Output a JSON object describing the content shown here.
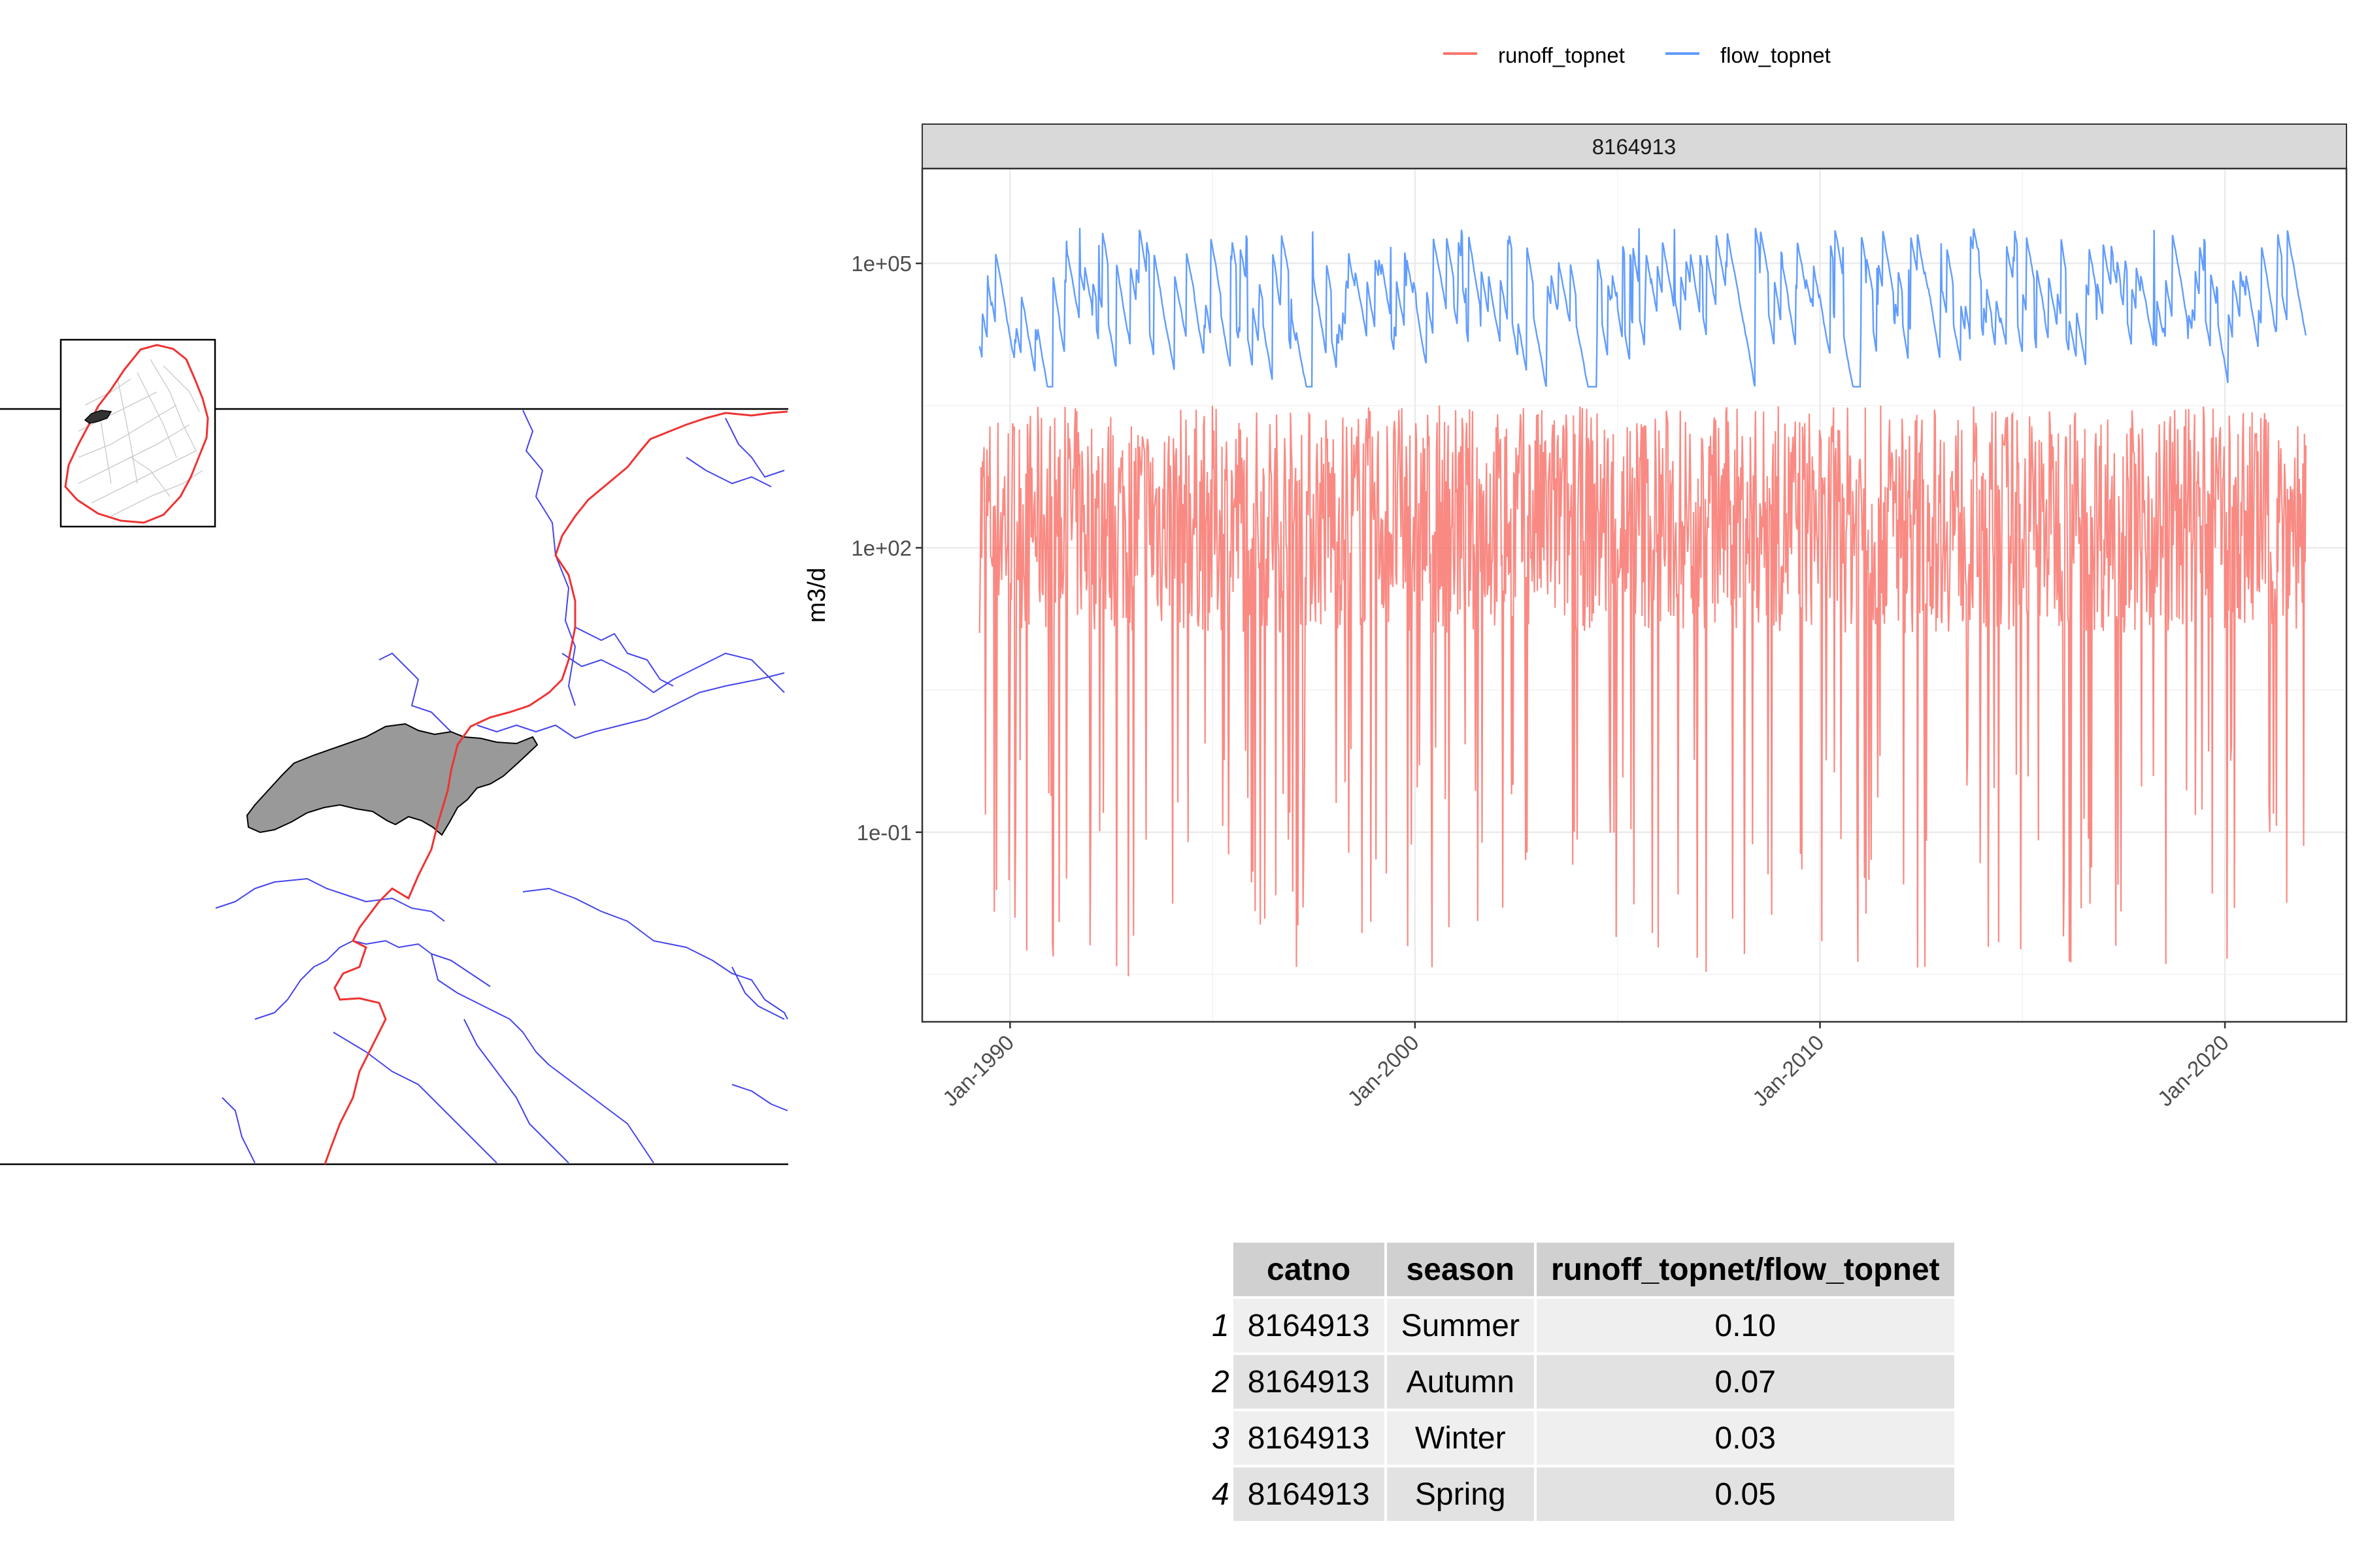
{
  "colors": {
    "runoff": "#F8766D",
    "flow": "#619CFF",
    "catchment_fill": "#999999",
    "river": "#4444ee",
    "boundary": "#ee3333",
    "facet_strip": "#d9d9d9",
    "grid": "#ebebeb"
  },
  "map": {
    "inset_present": true,
    "catchment_present": true
  },
  "chart_data": {
    "type": "line",
    "facet_label": "8164913",
    "ylabel": "m3/d",
    "xlabel": "",
    "y_scale": "log10",
    "ylim": [
      0.001,
      1000000
    ],
    "yticks": [
      "1e-01",
      "1e+02",
      "1e+05"
    ],
    "ytick_values": [
      0.1,
      100,
      100000
    ],
    "xlim": [
      "1987-11-01",
      "2023-01-01"
    ],
    "xticks": [
      "Jan-1990",
      "Jan-2000",
      "Jan-2010",
      "Jan-2020"
    ],
    "xtick_values": [
      "1990-01-01",
      "2000-01-01",
      "2010-01-01",
      "2020-01-01"
    ],
    "x_range": [
      "1989-04-01",
      "2021-12-31"
    ],
    "legend_position": "top",
    "grid": true,
    "series": [
      {
        "name": "runoff_topnet",
        "color": "#F8766D",
        "typical": 200,
        "min": 0.003,
        "max": 20000
      },
      {
        "name": "flow_topnet",
        "color": "#619CFF",
        "typical": 15000,
        "min": 5000,
        "max": 300000
      }
    ]
  },
  "table": {
    "headers": [
      "catno",
      "season",
      "runoff_topnet/flow_topnet"
    ],
    "rows": [
      {
        "index": "1",
        "catno": "8164913",
        "season": "Summer",
        "ratio": "0.10"
      },
      {
        "index": "2",
        "catno": "8164913",
        "season": "Autumn",
        "ratio": "0.07"
      },
      {
        "index": "3",
        "catno": "8164913",
        "season": "Winter",
        "ratio": "0.03"
      },
      {
        "index": "4",
        "catno": "8164913",
        "season": "Spring",
        "ratio": "0.05"
      }
    ]
  }
}
